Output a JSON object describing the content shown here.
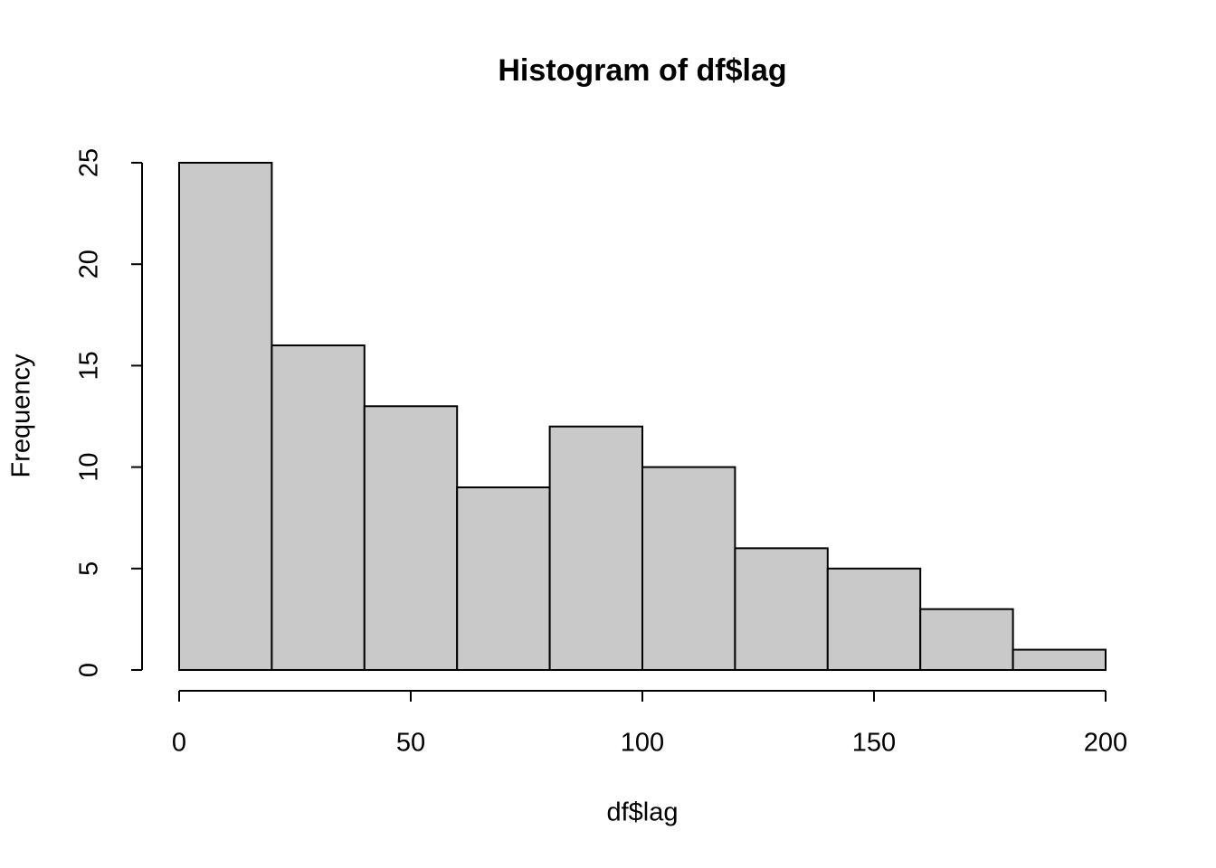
{
  "chart_data": {
    "type": "histogram",
    "title": "Histogram of df$lag",
    "x_label": "df$lag",
    "y_label": "Frequency",
    "bins": [
      0,
      20,
      40,
      60,
      80,
      100,
      120,
      140,
      160,
      180,
      200
    ],
    "values": [
      25,
      16,
      13,
      9,
      12,
      10,
      6,
      5,
      3,
      1
    ],
    "color": "#c9c9c9",
    "xlim": [
      0,
      200
    ],
    "xticks": [
      0,
      50,
      100,
      150,
      200
    ],
    "ylim": [
      0,
      25
    ],
    "yticks": [
      0,
      5,
      10,
      15,
      20,
      25
    ]
  }
}
